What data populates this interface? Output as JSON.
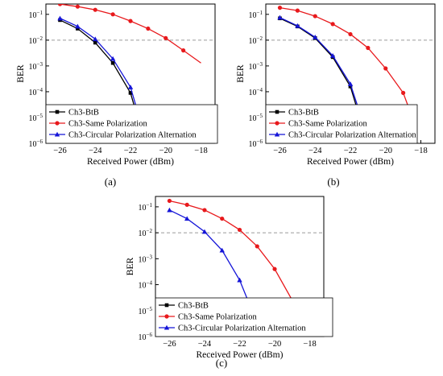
{
  "chart_data": [
    {
      "type": "line",
      "panel_label": "(a)",
      "xlabel": "Received Power (dBm)",
      "ylabel": "BER",
      "xlim": [
        -26.8,
        -17.2
      ],
      "ylim_log10": [
        -6,
        -0.6
      ],
      "xticks": [
        -26,
        -24,
        -22,
        -20,
        -18
      ],
      "xtick_labels": [
        "−26",
        "−24",
        "−22",
        "−20",
        "−18"
      ],
      "yticks_log10": [
        -1,
        -2,
        -3,
        -4,
        -5,
        -6
      ],
      "ytick_bases": [
        "10",
        "10",
        "10",
        "10",
        "10",
        "10"
      ],
      "ytick_exponents": [
        "−1",
        "−2",
        "−3",
        "−4",
        "−5",
        "−6"
      ],
      "threshold": 0.01,
      "legend": {
        "placement": "bottom-left"
      },
      "series": [
        {
          "name": "Ch3-BtB",
          "color": "#000000",
          "marker": "square",
          "x": [
            -26,
            -25,
            -24,
            -23,
            -22,
            -21.5
          ],
          "y": [
            0.06,
            0.028,
            0.008,
            0.0013,
            9e-05,
            6e-06
          ]
        },
        {
          "name": "Ch3-Same Polarization",
          "color": "#e8191c",
          "marker": "circle",
          "x": [
            -26,
            -25,
            -24,
            -23,
            -22,
            -21,
            -20,
            -19,
            -18
          ],
          "y": [
            0.25,
            0.2,
            0.15,
            0.1,
            0.055,
            0.028,
            0.012,
            0.004,
            0.0013
          ]
        },
        {
          "name": "Ch3-Circular Polarization Alternation",
          "color": "#1515d8",
          "marker": "triangle",
          "x": [
            -26,
            -25,
            -24,
            -23,
            -22,
            -21.4
          ],
          "y": [
            0.07,
            0.034,
            0.011,
            0.0019,
            0.00015,
            6e-06
          ]
        }
      ]
    },
    {
      "type": "line",
      "panel_label": "(b)",
      "xlabel": "Received Power (dBm)",
      "ylabel": "BER",
      "xlim": [
        -26.8,
        -17.2
      ],
      "ylim_log10": [
        -6,
        -0.6
      ],
      "xticks": [
        -26,
        -24,
        -22,
        -20,
        -18
      ],
      "xtick_labels": [
        "−26",
        "−24",
        "−22",
        "−20",
        "−18"
      ],
      "yticks_log10": [
        -1,
        -2,
        -3,
        -4,
        -5,
        -6
      ],
      "ytick_bases": [
        "10",
        "10",
        "10",
        "10",
        "10",
        "10"
      ],
      "ytick_exponents": [
        "−1",
        "−2",
        "−3",
        "−4",
        "−5",
        "−6"
      ],
      "threshold": 0.01,
      "legend": {
        "placement": "bottom-left"
      },
      "series": [
        {
          "name": "Ch3-BtB",
          "color": "#000000",
          "marker": "square",
          "x": [
            -26,
            -25,
            -24,
            -23,
            -22,
            -21.4
          ],
          "y": [
            0.07,
            0.034,
            0.012,
            0.0022,
            0.00016,
            7e-06
          ]
        },
        {
          "name": "Ch3-Same Polarization",
          "color": "#e8191c",
          "marker": "circle",
          "x": [
            -26,
            -25,
            -24,
            -23,
            -22,
            -21,
            -20,
            -19,
            -18.4
          ],
          "y": [
            0.18,
            0.14,
            0.085,
            0.042,
            0.017,
            0.005,
            0.0008,
            9e-05,
            7e-06
          ]
        },
        {
          "name": "Ch3-Circular Polarization Alternation",
          "color": "#1515d8",
          "marker": "triangle",
          "x": [
            -26,
            -25,
            -24,
            -23,
            -22,
            -21.3
          ],
          "y": [
            0.075,
            0.036,
            0.013,
            0.0025,
            0.0002,
            7e-06
          ]
        }
      ]
    },
    {
      "type": "line",
      "panel_label": "(c)",
      "xlabel": "Received Power (dBm)",
      "ylabel": "BER",
      "xlim": [
        -26.8,
        -17.2
      ],
      "ylim_log10": [
        -6,
        -0.6
      ],
      "xticks": [
        -26,
        -24,
        -22,
        -20,
        -18
      ],
      "xtick_labels": [
        "−26",
        "−24",
        "−22",
        "−20",
        "−18"
      ],
      "yticks_log10": [
        -1,
        -2,
        -3,
        -4,
        -5,
        -6
      ],
      "ytick_bases": [
        "10",
        "10",
        "10",
        "10",
        "10",
        "10"
      ],
      "ytick_exponents": [
        "−1",
        "−2",
        "−3",
        "−4",
        "−5",
        "−6"
      ],
      "threshold": 0.01,
      "legend": {
        "placement": "bottom-left"
      },
      "series": [
        {
          "name": "Ch3-BtB",
          "color": "#000000",
          "marker": "square",
          "x": [
            -26
          ],
          "y": [
            5e-06
          ]
        },
        {
          "name": "Ch3-Same Polarization",
          "color": "#e8191c",
          "marker": "circle",
          "x": [
            -26,
            -25,
            -24,
            -23,
            -22,
            -21,
            -20,
            -19,
            -18.6
          ],
          "y": [
            0.17,
            0.12,
            0.075,
            0.035,
            0.013,
            0.003,
            0.0004,
            2.5e-05,
            6e-06
          ]
        },
        {
          "name": "Ch3-Circular Polarization Alternation",
          "color": "#1515d8",
          "marker": "triangle",
          "x": [
            -26,
            -25,
            -24,
            -23,
            -22,
            -21.2
          ],
          "y": [
            0.075,
            0.035,
            0.011,
            0.0021,
            0.00015,
            7e-06
          ]
        }
      ]
    }
  ]
}
